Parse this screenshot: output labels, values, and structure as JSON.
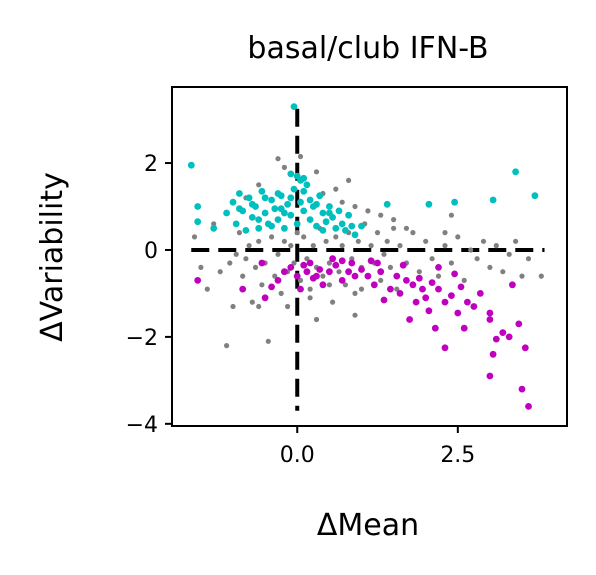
{
  "chart_data": {
    "type": "scatter",
    "title": "basal/club IFN-B",
    "xlabel": "ΔMean",
    "ylabel": "ΔVariability",
    "xlim": [
      -1.95,
      4.2
    ],
    "ylim": [
      -4.05,
      3.75
    ],
    "xticks": [
      0.0,
      2.5
    ],
    "xtick_labels": [
      "0.0",
      "2.5"
    ],
    "yticks": [
      -4,
      -2,
      0,
      2
    ],
    "ytick_labels": [
      "−4",
      "−2",
      "0",
      "2"
    ],
    "grid": false,
    "legend": "none",
    "reference_lines": [
      {
        "orientation": "horizontal",
        "value": 0,
        "style": "dashed",
        "color": "#000000"
      },
      {
        "orientation": "vertical",
        "value": 0,
        "style": "dashed",
        "color": "#000000"
      }
    ],
    "series": [
      {
        "color": "#808080",
        "points": [
          [
            -1.6,
            0.3
          ],
          [
            -1.5,
            -0.4
          ],
          [
            -1.4,
            -0.9
          ],
          [
            -1.2,
            -0.5
          ],
          [
            -1.1,
            -2.2
          ],
          [
            -1.05,
            -0.3
          ],
          [
            -1.0,
            -1.3
          ],
          [
            -0.95,
            -0.1
          ],
          [
            -0.9,
            0.4
          ],
          [
            -0.85,
            -0.6
          ],
          [
            -0.8,
            -0.2
          ],
          [
            -0.75,
            0.1
          ],
          [
            -0.7,
            -1.2
          ],
          [
            -0.65,
            -0.4
          ],
          [
            -0.6,
            0.2
          ],
          [
            -0.55,
            -0.8
          ],
          [
            -0.5,
            -0.3
          ],
          [
            -0.45,
            -2.1
          ],
          [
            -0.4,
            0.3
          ],
          [
            -0.35,
            -0.6
          ],
          [
            -0.3,
            -0.1
          ],
          [
            -0.25,
            -1.0
          ],
          [
            -0.2,
            0.2
          ],
          [
            -0.15,
            -0.5
          ],
          [
            -0.1,
            0.1
          ],
          [
            -0.05,
            -0.3
          ],
          [
            0.0,
            0.4
          ],
          [
            0.05,
            -0.7
          ],
          [
            0.1,
            0.3
          ],
          [
            0.15,
            -0.2
          ],
          [
            0.2,
            -1.1
          ],
          [
            0.25,
            0.1
          ],
          [
            0.3,
            -0.4
          ],
          [
            0.35,
            0.5
          ],
          [
            0.4,
            -0.6
          ],
          [
            0.45,
            0.2
          ],
          [
            0.5,
            -0.3
          ],
          [
            0.55,
            -1.2
          ],
          [
            0.6,
            0.3
          ],
          [
            0.65,
            -0.5
          ],
          [
            0.7,
            0.1
          ],
          [
            0.75,
            -0.8
          ],
          [
            0.8,
            0.4
          ],
          [
            0.85,
            -0.2
          ],
          [
            0.9,
            -1.0
          ],
          [
            0.95,
            0.2
          ],
          [
            1.0,
            -0.4
          ],
          [
            1.05,
            0.6
          ],
          [
            1.1,
            -0.6
          ],
          [
            1.15,
            0.1
          ],
          [
            1.2,
            -0.3
          ],
          [
            1.25,
            0.4
          ],
          [
            1.3,
            -0.7
          ],
          [
            1.35,
            -0.1
          ],
          [
            1.4,
            0.2
          ],
          [
            1.45,
            -0.4
          ],
          [
            1.5,
            0.5
          ],
          [
            1.55,
            -0.9
          ],
          [
            1.6,
            0.1
          ],
          [
            1.7,
            -0.3
          ],
          [
            1.8,
            0.4
          ],
          [
            1.9,
            -0.5
          ],
          [
            2.0,
            0.2
          ],
          [
            2.1,
            -0.2
          ],
          [
            2.2,
            -0.6
          ],
          [
            2.3,
            0.1
          ],
          [
            2.4,
            -0.3
          ],
          [
            2.5,
            0.3
          ],
          [
            2.6,
            -0.7
          ],
          [
            2.7,
            0.0
          ],
          [
            2.8,
            -0.2
          ],
          [
            2.9,
            0.2
          ],
          [
            3.0,
            -0.4
          ],
          [
            3.1,
            0.1
          ],
          [
            3.2,
            -0.5
          ],
          [
            3.3,
            -0.1
          ],
          [
            3.4,
            0.2
          ],
          [
            3.5,
            -0.6
          ],
          [
            3.6,
            -0.2
          ],
          [
            3.8,
            -0.6
          ],
          [
            -0.3,
            2.1
          ],
          [
            0.05,
            2.15
          ],
          [
            0.3,
            1.8
          ],
          [
            -0.2,
            1.9
          ],
          [
            0.15,
            1.5
          ],
          [
            0.4,
            1.3
          ],
          [
            0.6,
            1.4
          ],
          [
            0.7,
            1.1
          ],
          [
            0.9,
            1.0
          ],
          [
            0.8,
            1.6
          ],
          [
            -0.6,
            1.5
          ],
          [
            -0.8,
            1.2
          ],
          [
            1.1,
            0.9
          ],
          [
            1.3,
            0.8
          ],
          [
            1.5,
            0.7
          ],
          [
            -1.3,
            0.6
          ],
          [
            1.7,
            0.5
          ],
          [
            2.3,
            0.4
          ],
          [
            0.2,
            -0.9
          ],
          [
            0.5,
            -0.8
          ],
          [
            -0.15,
            -1.3
          ],
          [
            0.9,
            -1.5
          ],
          [
            1.0,
            -0.9
          ],
          [
            -0.6,
            -1.3
          ],
          [
            0.3,
            -1.6
          ],
          [
            2.4,
            0.8
          ]
        ]
      },
      {
        "color": "#00bfbf",
        "points": [
          [
            -1.65,
            1.95
          ],
          [
            -1.55,
            1.0
          ],
          [
            -1.55,
            0.65
          ],
          [
            -1.3,
            0.5
          ],
          [
            -1.1,
            0.85
          ],
          [
            -1.0,
            1.1
          ],
          [
            -0.95,
            0.6
          ],
          [
            -0.9,
            1.3
          ],
          [
            -0.85,
            0.9
          ],
          [
            -0.8,
            0.45
          ],
          [
            -0.75,
            1.2
          ],
          [
            -0.7,
            0.75
          ],
          [
            -0.65,
            1.0
          ],
          [
            -0.6,
            0.5
          ],
          [
            -0.55,
            1.35
          ],
          [
            -0.5,
            0.85
          ],
          [
            -0.45,
            0.6
          ],
          [
            -0.4,
            1.15
          ],
          [
            -0.35,
            0.95
          ],
          [
            -0.3,
            0.7
          ],
          [
            -0.25,
            1.25
          ],
          [
            -0.2,
            0.5
          ],
          [
            -0.15,
            1.05
          ],
          [
            -0.1,
            0.8
          ],
          [
            -0.05,
            1.4
          ],
          [
            0.0,
            0.6
          ],
          [
            0.05,
            1.1
          ],
          [
            0.1,
            0.9
          ],
          [
            0.15,
            1.5
          ],
          [
            0.2,
            0.7
          ],
          [
            0.25,
            1.0
          ],
          [
            0.3,
            0.55
          ],
          [
            0.35,
            1.25
          ],
          [
            0.4,
            0.85
          ],
          [
            0.45,
            0.65
          ],
          [
            0.5,
            1.0
          ],
          [
            0.55,
            0.75
          ],
          [
            0.6,
            0.5
          ],
          [
            0.65,
            0.9
          ],
          [
            0.7,
            0.6
          ],
          [
            0.75,
            0.45
          ],
          [
            0.8,
            0.8
          ],
          [
            0.85,
            0.55
          ],
          [
            0.9,
            0.35
          ],
          [
            -0.7,
            1.05
          ],
          [
            -0.5,
            1.2
          ],
          [
            -0.3,
            1.3
          ],
          [
            -0.1,
            1.2
          ],
          [
            0.1,
            1.35
          ],
          [
            0.3,
            1.05
          ],
          [
            0.5,
            0.85
          ],
          [
            -0.6,
            0.7
          ],
          [
            -0.4,
            0.55
          ],
          [
            -0.2,
            0.85
          ],
          [
            0.0,
            1.7
          ],
          [
            0.1,
            1.65
          ],
          [
            0.05,
            1.6
          ],
          [
            -0.1,
            1.75
          ],
          [
            -0.05,
            3.3
          ],
          [
            1.4,
            1.05
          ],
          [
            2.05,
            1.05
          ],
          [
            2.45,
            1.1
          ],
          [
            3.05,
            1.15
          ],
          [
            3.4,
            1.8
          ],
          [
            3.7,
            1.25
          ],
          [
            1.0,
            0.55
          ],
          [
            -0.9,
            0.95
          ],
          [
            0.2,
            1.15
          ],
          [
            -0.25,
            0.95
          ],
          [
            0.4,
            0.45
          ]
        ]
      },
      {
        "color": "#bf00bf",
        "points": [
          [
            -1.55,
            -0.7
          ],
          [
            -0.85,
            -0.9
          ],
          [
            -0.5,
            -1.1
          ],
          [
            -0.3,
            -0.7
          ],
          [
            -0.2,
            -0.5
          ],
          [
            -0.1,
            -0.4
          ],
          [
            0.0,
            -0.6
          ],
          [
            0.05,
            -0.9
          ],
          [
            0.1,
            -0.35
          ],
          [
            0.15,
            -0.5
          ],
          [
            0.2,
            -0.3
          ],
          [
            0.3,
            -0.6
          ],
          [
            0.35,
            -0.45
          ],
          [
            0.4,
            -0.8
          ],
          [
            0.5,
            -0.5
          ],
          [
            0.6,
            -0.35
          ],
          [
            0.7,
            -0.7
          ],
          [
            0.8,
            -0.5
          ],
          [
            0.9,
            -0.6
          ],
          [
            1.0,
            -0.45
          ],
          [
            1.1,
            -0.6
          ],
          [
            1.2,
            -0.8
          ],
          [
            1.3,
            -0.5
          ],
          [
            1.35,
            -1.15
          ],
          [
            1.45,
            -0.9
          ],
          [
            1.55,
            -0.6
          ],
          [
            1.6,
            -1.0
          ],
          [
            1.7,
            -0.7
          ],
          [
            1.75,
            -1.6
          ],
          [
            1.8,
            -0.8
          ],
          [
            1.85,
            -1.2
          ],
          [
            1.9,
            -0.65
          ],
          [
            1.95,
            -0.9
          ],
          [
            2.0,
            -1.1
          ],
          [
            2.05,
            -1.4
          ],
          [
            2.1,
            -0.75
          ],
          [
            2.15,
            -1.8
          ],
          [
            2.2,
            -0.9
          ],
          [
            2.3,
            -1.2
          ],
          [
            2.3,
            -2.25
          ],
          [
            2.4,
            -1.05
          ],
          [
            2.5,
            -1.45
          ],
          [
            2.55,
            -0.85
          ],
          [
            2.6,
            -1.8
          ],
          [
            2.65,
            -1.2
          ],
          [
            2.75,
            -1.3
          ],
          [
            2.85,
            -1.0
          ],
          [
            3.0,
            -1.6
          ],
          [
            3.0,
            -2.9
          ],
          [
            3.05,
            -2.4
          ],
          [
            3.1,
            -2.05
          ],
          [
            3.2,
            -1.9
          ],
          [
            3.3,
            -2.0
          ],
          [
            3.35,
            -0.8
          ],
          [
            3.45,
            -1.7
          ],
          [
            3.5,
            -3.2
          ],
          [
            3.55,
            -2.25
          ],
          [
            3.6,
            -3.6
          ],
          [
            -0.55,
            -0.3
          ],
          [
            0.7,
            -0.25
          ],
          [
            1.15,
            -0.25
          ],
          [
            1.65,
            -0.35
          ],
          [
            2.2,
            -0.4
          ],
          [
            3.0,
            -1.45
          ],
          [
            -0.4,
            -0.85
          ],
          [
            0.25,
            -0.65
          ],
          [
            0.55,
            -0.2
          ],
          [
            1.25,
            -0.3
          ],
          [
            0.85,
            -0.3
          ],
          [
            2.45,
            -0.55
          ]
        ]
      }
    ]
  }
}
